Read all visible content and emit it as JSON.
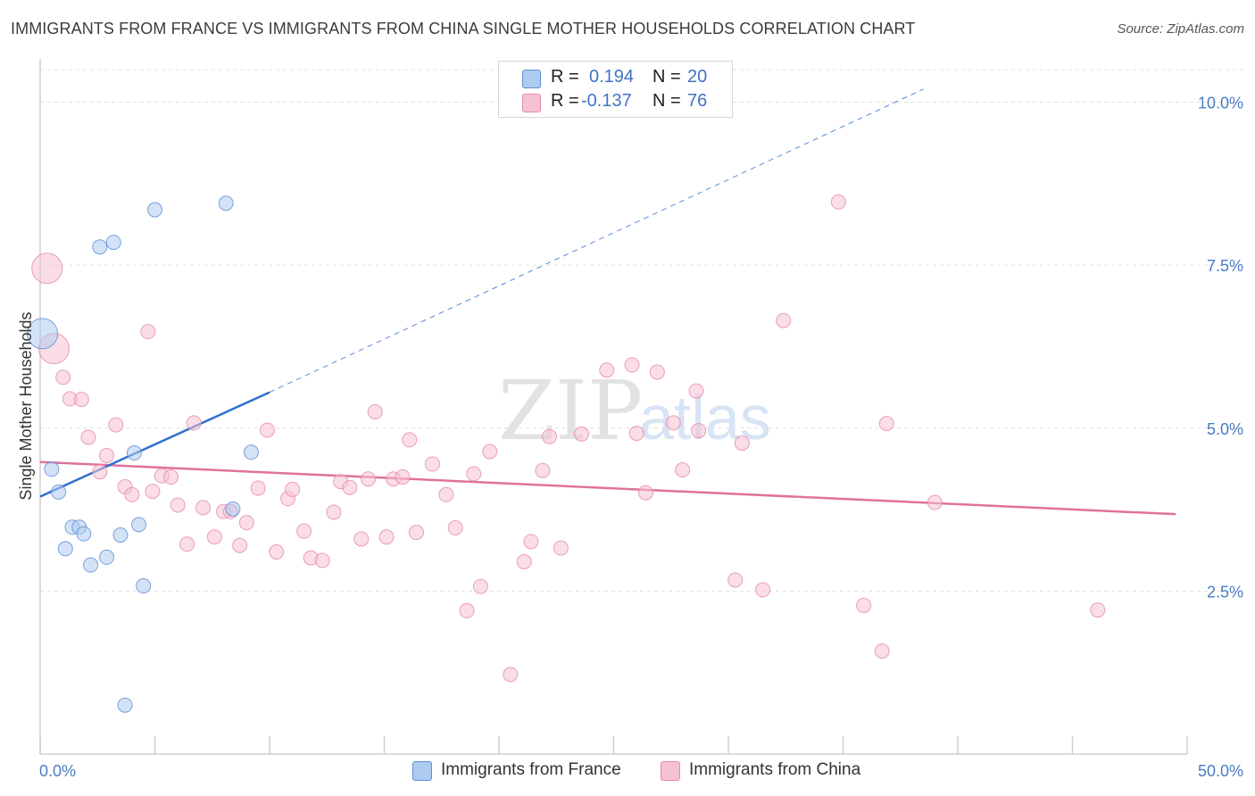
{
  "title": "IMMIGRANTS FROM FRANCE VS IMMIGRANTS FROM CHINA SINGLE MOTHER HOUSEHOLDS CORRELATION CHART",
  "source": "Source: ZipAtlas.com",
  "watermark": {
    "zip": "ZIP",
    "atlas": "atlas"
  },
  "legend": {
    "rows": [
      {
        "r_label": "R =",
        "r_value": "0.194",
        "n_label": "N =",
        "n_value": "20"
      },
      {
        "r_label": "R =",
        "r_value": "-0.137",
        "n_label": "N =",
        "n_value": "76"
      }
    ]
  },
  "colors": {
    "france_fill": "#aecbef",
    "france_stroke": "#5b8fd4",
    "france_line": "#2f6fce",
    "china_fill": "#f6c1d3",
    "china_stroke": "#e58aa8",
    "china_line": "#e0729b",
    "grid": "#e0e0e0",
    "axis_text": "#4a7cc4"
  },
  "chart_data": {
    "type": "scatter",
    "title": "IMMIGRANTS FROM FRANCE VS IMMIGRANTS FROM CHINA SINGLE MOTHER HOUSEHOLDS CORRELATION CHART",
    "xlabel": "",
    "ylabel": "Single Mother Households",
    "xlim": [
      0,
      50
    ],
    "ylim": [
      0,
      10.5
    ],
    "x_tick_labels": [
      {
        "value": 0,
        "label": "0.0%"
      },
      {
        "value": 50,
        "label": "50.0%"
      }
    ],
    "y_tick_labels": [
      {
        "value": 2.5,
        "label": "2.5%"
      },
      {
        "value": 5.0,
        "label": "5.0%"
      },
      {
        "value": 7.5,
        "label": "7.5%"
      },
      {
        "value": 10.0,
        "label": "10.0%"
      }
    ],
    "legend_position": "top-center",
    "series": [
      {
        "name": "Immigrants from France",
        "r": 0.194,
        "n": 20,
        "trend": {
          "x0": 0,
          "y0": 3.95,
          "x1": 10,
          "y1": 5.55,
          "dashed_to_x": 38.5,
          "dashed_to_y": 10.2
        },
        "points": [
          {
            "x": 0.1,
            "y": 6.45,
            "big": true
          },
          {
            "x": 0.5,
            "y": 4.37
          },
          {
            "x": 0.8,
            "y": 4.02
          },
          {
            "x": 1.1,
            "y": 3.15
          },
          {
            "x": 1.4,
            "y": 3.48
          },
          {
            "x": 1.7,
            "y": 3.48
          },
          {
            "x": 1.9,
            "y": 3.38
          },
          {
            "x": 2.2,
            "y": 2.9
          },
          {
            "x": 2.6,
            "y": 7.78
          },
          {
            "x": 2.9,
            "y": 3.02
          },
          {
            "x": 3.2,
            "y": 7.85
          },
          {
            "x": 3.5,
            "y": 3.36
          },
          {
            "x": 3.7,
            "y": 0.75
          },
          {
            "x": 4.3,
            "y": 3.52
          },
          {
            "x": 4.5,
            "y": 2.58
          },
          {
            "x": 4.1,
            "y": 4.62
          },
          {
            "x": 5.0,
            "y": 8.35
          },
          {
            "x": 8.1,
            "y": 8.45
          },
          {
            "x": 8.4,
            "y": 3.76
          },
          {
            "x": 9.2,
            "y": 4.63
          }
        ]
      },
      {
        "name": "Immigrants from China",
        "r": -0.137,
        "n": 76,
        "trend": {
          "x0": 0,
          "y0": 4.48,
          "x1": 49.5,
          "y1": 3.68
        },
        "points": [
          {
            "x": 0.3,
            "y": 7.45,
            "big": true
          },
          {
            "x": 0.6,
            "y": 6.22,
            "big": true
          },
          {
            "x": 1.0,
            "y": 5.78
          },
          {
            "x": 1.3,
            "y": 5.45
          },
          {
            "x": 1.8,
            "y": 5.44
          },
          {
            "x": 2.1,
            "y": 4.86
          },
          {
            "x": 2.6,
            "y": 4.33
          },
          {
            "x": 2.9,
            "y": 4.58
          },
          {
            "x": 3.3,
            "y": 5.05
          },
          {
            "x": 3.7,
            "y": 4.1
          },
          {
            "x": 4.0,
            "y": 3.98
          },
          {
            "x": 4.7,
            "y": 6.48
          },
          {
            "x": 4.9,
            "y": 4.03
          },
          {
            "x": 5.3,
            "y": 4.27
          },
          {
            "x": 5.7,
            "y": 4.25
          },
          {
            "x": 6.0,
            "y": 3.82
          },
          {
            "x": 6.4,
            "y": 3.22
          },
          {
            "x": 6.7,
            "y": 5.08
          },
          {
            "x": 7.1,
            "y": 3.78
          },
          {
            "x": 7.6,
            "y": 3.33
          },
          {
            "x": 8.0,
            "y": 3.72
          },
          {
            "x": 8.3,
            "y": 3.72
          },
          {
            "x": 8.7,
            "y": 3.2
          },
          {
            "x": 9.0,
            "y": 3.55
          },
          {
            "x": 9.5,
            "y": 4.08
          },
          {
            "x": 9.9,
            "y": 4.97
          },
          {
            "x": 10.3,
            "y": 3.1
          },
          {
            "x": 10.8,
            "y": 3.92
          },
          {
            "x": 11.0,
            "y": 4.06
          },
          {
            "x": 11.5,
            "y": 3.42
          },
          {
            "x": 11.8,
            "y": 3.01
          },
          {
            "x": 12.3,
            "y": 2.97
          },
          {
            "x": 12.8,
            "y": 3.71
          },
          {
            "x": 13.1,
            "y": 4.18
          },
          {
            "x": 13.5,
            "y": 4.09
          },
          {
            "x": 14.0,
            "y": 3.3
          },
          {
            "x": 14.3,
            "y": 4.22
          },
          {
            "x": 14.6,
            "y": 5.25
          },
          {
            "x": 15.1,
            "y": 3.33
          },
          {
            "x": 15.4,
            "y": 4.22
          },
          {
            "x": 15.8,
            "y": 4.25
          },
          {
            "x": 16.1,
            "y": 4.82
          },
          {
            "x": 16.4,
            "y": 3.4
          },
          {
            "x": 17.1,
            "y": 4.45
          },
          {
            "x": 17.7,
            "y": 3.98
          },
          {
            "x": 18.1,
            "y": 3.47
          },
          {
            "x": 18.6,
            "y": 2.2
          },
          {
            "x": 18.9,
            "y": 4.3
          },
          {
            "x": 19.2,
            "y": 2.57
          },
          {
            "x": 19.6,
            "y": 4.64
          },
          {
            "x": 20.5,
            "y": 1.22
          },
          {
            "x": 21.1,
            "y": 2.95
          },
          {
            "x": 21.4,
            "y": 3.26
          },
          {
            "x": 21.9,
            "y": 4.35
          },
          {
            "x": 22.2,
            "y": 4.87
          },
          {
            "x": 22.7,
            "y": 3.16
          },
          {
            "x": 23.6,
            "y": 4.91
          },
          {
            "x": 24.7,
            "y": 5.89
          },
          {
            "x": 25.8,
            "y": 5.97
          },
          {
            "x": 26.0,
            "y": 4.92
          },
          {
            "x": 26.4,
            "y": 4.01
          },
          {
            "x": 26.9,
            "y": 5.86
          },
          {
            "x": 27.6,
            "y": 5.08
          },
          {
            "x": 28.0,
            "y": 4.36
          },
          {
            "x": 28.6,
            "y": 5.57
          },
          {
            "x": 28.7,
            "y": 4.96
          },
          {
            "x": 30.3,
            "y": 2.67
          },
          {
            "x": 30.6,
            "y": 4.77
          },
          {
            "x": 31.5,
            "y": 2.52
          },
          {
            "x": 32.4,
            "y": 6.65
          },
          {
            "x": 34.8,
            "y": 8.47
          },
          {
            "x": 35.9,
            "y": 2.28
          },
          {
            "x": 36.7,
            "y": 1.58
          },
          {
            "x": 36.9,
            "y": 5.07
          },
          {
            "x": 39.0,
            "y": 3.86
          },
          {
            "x": 46.1,
            "y": 2.21
          }
        ]
      }
    ]
  }
}
